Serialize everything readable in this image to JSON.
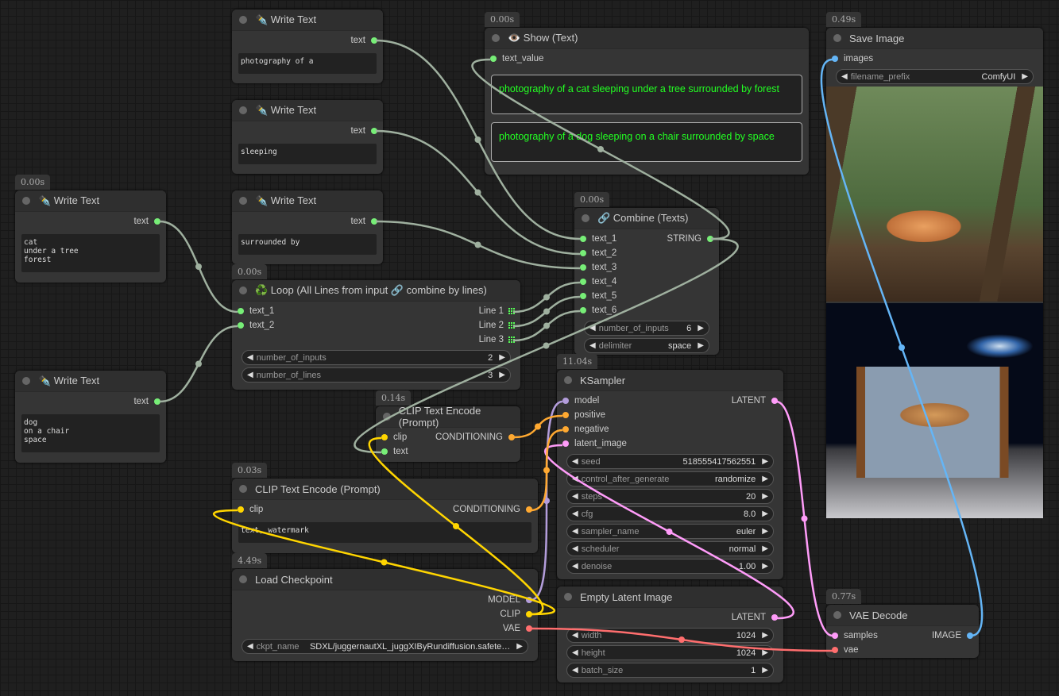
{
  "colors": {
    "STRING": "#77ee77",
    "CLIP": "#ffd500",
    "MODEL": "#b39ddb",
    "CONDITIONING": "#ffa931",
    "LATENT": "#ff9cf9",
    "VAE": "#ff6e6e",
    "IMAGE": "#64b5f6"
  },
  "nodes": [
    {
      "title": "✒️ Write Text",
      "outputs": [
        {
          "label": "text",
          "type": "STRING"
        }
      ],
      "textarea": "photography of a"
    },
    {
      "title": "✒️ Write Text",
      "outputs": [
        {
          "label": "text",
          "type": "STRING"
        }
      ],
      "textarea": "sleeping"
    },
    {
      "title": "✒️ Write Text",
      "outputs": [
        {
          "label": "text",
          "type": "STRING"
        }
      ],
      "textarea": "surrounded by"
    },
    {
      "timer": "0.00s",
      "title": "✒️ Write Text",
      "outputs": [
        {
          "label": "text",
          "type": "STRING"
        }
      ],
      "textarea": "cat\nunder a tree\nforest"
    },
    {
      "title": "✒️ Write Text",
      "outputs": [
        {
          "label": "text",
          "type": "STRING"
        }
      ],
      "textarea": "dog\non a chair\nspace"
    },
    {
      "timer": "0.00s",
      "title": "👁️ Show (Text)",
      "inputs": [
        {
          "label": "text_value",
          "type": "STRING"
        }
      ],
      "show": [
        "photography of a cat sleeping  under a tree surrounded by forest",
        "photography of a dog sleeping  on a chair surrounded by space"
      ]
    },
    {
      "timer": "0.49s",
      "title": "Save Image",
      "inputs": [
        {
          "label": "images",
          "type": "IMAGE"
        }
      ],
      "widgets": [
        {
          "label": "filename_prefix",
          "value": "ComfyUI"
        }
      ],
      "images": [
        "cat-sleeping-under-tree",
        "dog-sleeping-on-chair-space"
      ]
    },
    {
      "timer": "0.00s",
      "title": "🔗 Combine (Texts)",
      "inputs": [
        {
          "label": "text_1",
          "type": "STRING"
        },
        {
          "label": "text_2",
          "type": "STRING"
        },
        {
          "label": "text_3",
          "type": "STRING"
        },
        {
          "label": "text_4",
          "type": "STRING"
        },
        {
          "label": "text_5",
          "type": "STRING"
        },
        {
          "label": "text_6",
          "type": "STRING"
        }
      ],
      "outputs": [
        {
          "label": "STRING",
          "type": "STRING"
        }
      ],
      "widgets": [
        {
          "label": "number_of_inputs",
          "value": "6"
        },
        {
          "label": "delimiter",
          "value": "space"
        }
      ]
    },
    {
      "timer": "0.00s",
      "title": "♻️ Loop (All Lines from input 🔗 combine by lines)",
      "inputs": [
        {
          "label": "text_1",
          "type": "STRING"
        },
        {
          "label": "text_2",
          "type": "STRING"
        }
      ],
      "outputs": [
        {
          "label": "Line 1",
          "type": "LIST"
        },
        {
          "label": "Line 2",
          "type": "LIST"
        },
        {
          "label": "Line 3",
          "type": "LIST"
        }
      ],
      "widgets": [
        {
          "label": "number_of_inputs",
          "value": "2"
        },
        {
          "label": "number_of_lines",
          "value": "3"
        }
      ]
    },
    {
      "timer": "11.04s",
      "title": "KSampler",
      "inputs": [
        {
          "label": "model",
          "type": "MODEL"
        },
        {
          "label": "positive",
          "type": "CONDITIONING"
        },
        {
          "label": "negative",
          "type": "CONDITIONING"
        },
        {
          "label": "latent_image",
          "type": "LATENT"
        }
      ],
      "outputs": [
        {
          "label": "LATENT",
          "type": "LATENT"
        }
      ],
      "widgets": [
        {
          "label": "seed",
          "value": "518555417562551"
        },
        {
          "label": "control_after_generate",
          "value": "randomize"
        },
        {
          "label": "steps",
          "value": "20"
        },
        {
          "label": "cfg",
          "value": "8.0"
        },
        {
          "label": "sampler_name",
          "value": "euler"
        },
        {
          "label": "scheduler",
          "value": "normal"
        },
        {
          "label": "denoise",
          "value": "1.00"
        }
      ]
    },
    {
      "timer": "0.14s",
      "title": "CLIP Text Encode (Prompt)",
      "inputs": [
        {
          "label": "clip",
          "type": "CLIP"
        },
        {
          "label": "text",
          "type": "STRING"
        }
      ],
      "outputs": [
        {
          "label": "CONDITIONING",
          "type": "CONDITIONING"
        }
      ]
    },
    {
      "timer": "0.03s",
      "title": "CLIP Text Encode (Prompt)",
      "inputs": [
        {
          "label": "clip",
          "type": "CLIP"
        }
      ],
      "outputs": [
        {
          "label": "CONDITIONING",
          "type": "CONDITIONING"
        }
      ],
      "textarea": "text, watermark"
    },
    {
      "timer": "4.49s",
      "title": "Load Checkpoint",
      "outputs": [
        {
          "label": "MODEL",
          "type": "MODEL"
        },
        {
          "label": "CLIP",
          "type": "CLIP"
        },
        {
          "label": "VAE",
          "type": "VAE"
        }
      ],
      "widgets": [
        {
          "label": "ckpt_name",
          "value": "SDXL/juggernautXL_juggXIByRundiffusion.safete…"
        }
      ]
    },
    {
      "title": "Empty Latent Image",
      "outputs": [
        {
          "label": "LATENT",
          "type": "LATENT"
        }
      ],
      "widgets": [
        {
          "label": "width",
          "value": "1024"
        },
        {
          "label": "height",
          "value": "1024"
        },
        {
          "label": "batch_size",
          "value": "1"
        }
      ]
    },
    {
      "timer": "0.77s",
      "title": "VAE Decode",
      "inputs": [
        {
          "label": "samples",
          "type": "LATENT"
        },
        {
          "label": "vae",
          "type": "VAE"
        }
      ],
      "outputs": [
        {
          "label": "IMAGE",
          "type": "IMAGE"
        }
      ]
    }
  ]
}
